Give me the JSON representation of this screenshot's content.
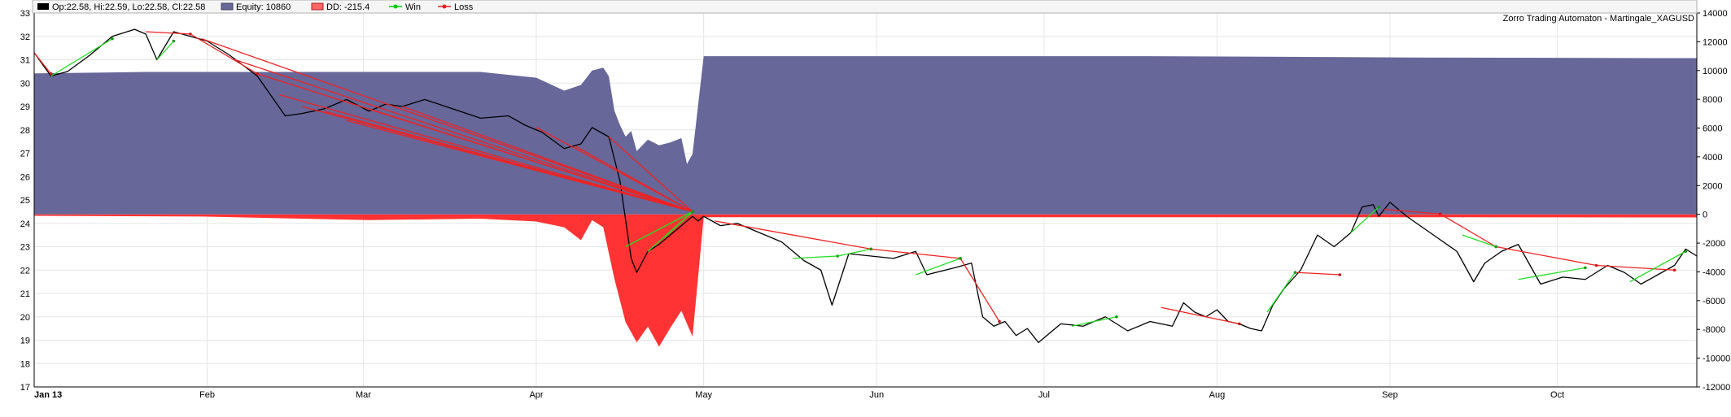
{
  "chart_data": {
    "type": "line",
    "title": "Zorro Trading Automaton - Martingale_XAGUSD",
    "legend": {
      "placement": "top-left",
      "items": [
        {
          "key": "ohlc",
          "label": "Op:22.58, Hi:22.59, Lo:22.58, Cl:22.58",
          "color": "#000000"
        },
        {
          "key": "equity",
          "label": "Equity: 10860",
          "color": "#676799"
        },
        {
          "key": "dd",
          "label": "DD: -215.4",
          "color": "#ff4444"
        },
        {
          "key": "win",
          "label": "Win",
          "color": "#00cc00"
        },
        {
          "key": "loss",
          "label": "Loss",
          "color": "#dd2222"
        }
      ]
    },
    "grid": true,
    "price_axis": {
      "side": "left",
      "ylim": [
        17,
        33
      ],
      "ticks": [
        17,
        18,
        19,
        20,
        21,
        22,
        23,
        24,
        25,
        26,
        27,
        28,
        29,
        30,
        31,
        32,
        33
      ]
    },
    "equity_axis": {
      "side": "right",
      "ylim": [
        -12000,
        14000
      ],
      "ticks": [
        -12000,
        -10000,
        -8000,
        -6000,
        -4000,
        -2000,
        0,
        2000,
        4000,
        6000,
        8000,
        10000,
        12000,
        14000
      ]
    },
    "x_axis": {
      "xlim": [
        0,
        298
      ],
      "ticks": [
        {
          "label": "Jan 13",
          "x": 0
        },
        {
          "label": "Feb",
          "x": 31
        },
        {
          "label": "Mar",
          "x": 59
        },
        {
          "label": "Apr",
          "x": 90
        },
        {
          "label": "May",
          "x": 120
        },
        {
          "label": "Jun",
          "x": 151
        },
        {
          "label": "Jul",
          "x": 181
        },
        {
          "label": "Aug",
          "x": 212
        },
        {
          "label": "Sep",
          "x": 243
        },
        {
          "label": "Oct",
          "x": 273
        }
      ]
    },
    "price_series": {
      "name": "XAGUSD",
      "x": [
        0,
        3,
        6,
        10,
        14,
        18,
        20,
        22,
        25,
        28,
        31,
        35,
        40,
        45,
        48,
        52,
        56,
        60,
        63,
        66,
        70,
        75,
        80,
        85,
        88,
        91,
        95,
        98,
        100,
        103,
        105,
        107,
        108,
        110,
        112,
        114,
        116,
        118,
        119,
        120,
        123,
        126,
        130,
        134,
        138,
        141,
        143,
        146,
        150,
        154,
        158,
        160,
        165,
        168,
        170,
        172,
        174,
        176,
        178,
        180,
        184,
        188,
        192,
        196,
        200,
        204,
        206,
        208,
        210,
        212,
        214,
        216,
        218,
        220,
        222,
        224,
        227,
        230,
        233,
        236,
        238,
        240,
        241,
        243,
        246,
        249,
        252,
        255,
        258,
        260,
        263,
        266,
        270,
        274,
        278,
        282,
        285,
        288,
        291,
        294,
        296,
        298
      ],
      "y": [
        31.3,
        30.3,
        30.5,
        31.2,
        32.0,
        32.3,
        32.1,
        31.0,
        32.2,
        32.0,
        31.8,
        31.2,
        30.3,
        28.6,
        28.7,
        28.9,
        29.3,
        28.8,
        29.1,
        29.0,
        29.3,
        28.9,
        28.5,
        28.6,
        28.2,
        27.9,
        27.2,
        27.4,
        28.1,
        27.7,
        25.8,
        22.5,
        21.9,
        22.8,
        23.1,
        23.5,
        23.9,
        24.3,
        24.1,
        24.3,
        23.9,
        24.0,
        23.6,
        23.2,
        22.4,
        22.0,
        20.5,
        22.7,
        22.6,
        22.5,
        22.8,
        21.8,
        22.1,
        22.3,
        20.0,
        19.6,
        19.8,
        19.2,
        19.5,
        18.9,
        19.7,
        19.6,
        20.0,
        19.4,
        19.8,
        19.6,
        20.6,
        20.2,
        20.0,
        20.3,
        19.8,
        19.7,
        19.5,
        19.4,
        20.5,
        21.2,
        22.0,
        23.5,
        23.0,
        23.6,
        24.7,
        24.8,
        24.3,
        24.9,
        24.3,
        23.8,
        23.3,
        22.8,
        21.5,
        22.3,
        22.8,
        23.1,
        21.4,
        21.7,
        21.6,
        22.2,
        21.9,
        21.4,
        21.8,
        22.2,
        22.9,
        22.6
      ]
    },
    "equity_series": {
      "name": "Equity",
      "x": [
        0,
        20,
        40,
        60,
        80,
        90,
        95,
        98,
        100,
        102,
        103,
        104,
        105,
        106,
        107,
        108,
        110,
        112,
        114,
        116,
        117,
        118,
        120,
        150,
        200,
        250,
        298
      ],
      "y": [
        9800,
        9900,
        9900,
        9900,
        9900,
        9500,
        8600,
        9000,
        10000,
        10200,
        9600,
        7200,
        6200,
        5400,
        5800,
        4400,
        5200,
        4800,
        5000,
        5300,
        3500,
        4200,
        11000,
        11000,
        11000,
        10900,
        10860
      ]
    },
    "drawdown_series": {
      "name": "DD",
      "x": [
        0,
        30,
        60,
        80,
        90,
        95,
        98,
        100,
        102,
        104,
        106,
        108,
        110,
        112,
        114,
        116,
        118,
        120,
        150,
        200,
        250,
        298
      ],
      "y": [
        -100,
        -150,
        -400,
        -300,
        -500,
        -900,
        -1800,
        -400,
        -900,
        -4500,
        -7500,
        -8900,
        -7800,
        -9200,
        -7900,
        -6700,
        -8500,
        -200,
        -200,
        -200,
        -200,
        -215
      ]
    },
    "loss_trades": [
      {
        "x0": 0,
        "y0": 31.3,
        "x1": 3,
        "y1": 30.4
      },
      {
        "x0": 20,
        "y0": 32.2,
        "x1": 28,
        "y1": 32.1
      },
      {
        "x0": 28,
        "y0": 32.1,
        "x1": 40,
        "y1": 30.4
      },
      {
        "x0": 30,
        "y0": 31.9,
        "x1": 118,
        "y1": 24.5
      },
      {
        "x0": 36,
        "y0": 31.0,
        "x1": 118,
        "y1": 24.5
      },
      {
        "x0": 40,
        "y0": 30.4,
        "x1": 118,
        "y1": 24.5
      },
      {
        "x0": 44,
        "y0": 29.5,
        "x1": 118,
        "y1": 24.5
      },
      {
        "x0": 48,
        "y0": 29.0,
        "x1": 118,
        "y1": 24.5
      },
      {
        "x0": 52,
        "y0": 28.8,
        "x1": 118,
        "y1": 24.5
      },
      {
        "x0": 56,
        "y0": 28.4,
        "x1": 118,
        "y1": 24.5
      },
      {
        "x0": 60,
        "y0": 28.9,
        "x1": 118,
        "y1": 24.5
      },
      {
        "x0": 66,
        "y0": 29.0,
        "x1": 118,
        "y1": 24.5
      },
      {
        "x0": 90,
        "y0": 28.1,
        "x1": 118,
        "y1": 24.5
      },
      {
        "x0": 97,
        "y0": 27.3,
        "x1": 118,
        "y1": 24.5
      },
      {
        "x0": 103,
        "y0": 27.7,
        "x1": 118,
        "y1": 24.5
      },
      {
        "x0": 122,
        "y0": 24.1,
        "x1": 150,
        "y1": 22.9
      },
      {
        "x0": 150,
        "y0": 22.9,
        "x1": 166,
        "y1": 22.5
      },
      {
        "x0": 166,
        "y0": 22.5,
        "x1": 173,
        "y1": 19.8
      },
      {
        "x0": 202,
        "y0": 20.4,
        "x1": 216,
        "y1": 19.7
      },
      {
        "x0": 226,
        "y0": 21.9,
        "x1": 234,
        "y1": 21.8
      },
      {
        "x0": 242,
        "y0": 24.6,
        "x1": 252,
        "y1": 24.4
      },
      {
        "x0": 252,
        "y0": 24.4,
        "x1": 262,
        "y1": 23.0
      },
      {
        "x0": 262,
        "y0": 23.0,
        "x1": 280,
        "y1": 22.2
      },
      {
        "x0": 280,
        "y0": 22.2,
        "x1": 294,
        "y1": 22.0
      }
    ],
    "win_trades": [
      {
        "x0": 3,
        "y0": 30.3,
        "x1": 14,
        "y1": 31.9
      },
      {
        "x0": 22,
        "y0": 31.0,
        "x1": 25,
        "y1": 31.8
      },
      {
        "x0": 106,
        "y0": 23.0,
        "x1": 118,
        "y1": 24.5
      },
      {
        "x0": 110,
        "y0": 22.8,
        "x1": 118,
        "y1": 24.5
      },
      {
        "x0": 113,
        "y0": 23.4,
        "x1": 118,
        "y1": 24.5
      },
      {
        "x0": 136,
        "y0": 22.5,
        "x1": 144,
        "y1": 22.6
      },
      {
        "x0": 144,
        "y0": 22.6,
        "x1": 150,
        "y1": 22.9
      },
      {
        "x0": 158,
        "y0": 21.8,
        "x1": 166,
        "y1": 22.5
      },
      {
        "x0": 186,
        "y0": 19.6,
        "x1": 194,
        "y1": 20.0
      },
      {
        "x0": 221,
        "y0": 20.2,
        "x1": 226,
        "y1": 21.9
      },
      {
        "x0": 236,
        "y0": 23.6,
        "x1": 241,
        "y1": 24.7
      },
      {
        "x0": 256,
        "y0": 23.5,
        "x1": 262,
        "y1": 23.0
      },
      {
        "x0": 266,
        "y0": 21.6,
        "x1": 278,
        "y1": 22.1
      },
      {
        "x0": 286,
        "y0": 21.5,
        "x1": 296,
        "y1": 22.8
      }
    ]
  }
}
